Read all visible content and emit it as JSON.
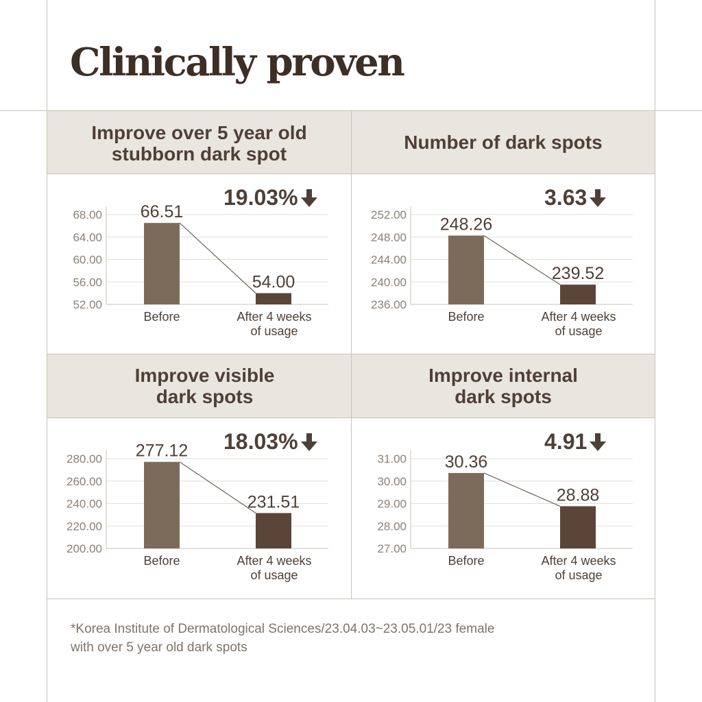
{
  "page": {
    "title": "Clinically proven",
    "footnote": "*Korea Institute of Dermatological Sciences/23.04.03~23.05.01/23 female\n  with over 5 year old dark spots"
  },
  "colors": {
    "background": "#ffffff",
    "header_bg": "#e9e6e0",
    "border": "#c9c3b8",
    "before_bar": "#7c6b5a",
    "after_bar": "#5a4538",
    "text_dark": "#4e4037",
    "tick_text": "#8a8178",
    "gridline": "#e2ded8"
  },
  "chart_data": [
    {
      "type": "bar",
      "title": "Improve over 5 year old\nstubborn dark spot",
      "change_label": "19.03%",
      "change_icon": "arrow-down-icon",
      "categories": [
        "Before",
        "After 4 weeks\nof usage"
      ],
      "values": [
        66.51,
        54.0
      ],
      "value_labels": [
        "66.51",
        "54.00"
      ],
      "yticks": [
        "52.00",
        "56.00",
        "60.00",
        "64.00",
        "68.00"
      ],
      "ylim": [
        52,
        68
      ],
      "grid": true
    },
    {
      "type": "bar",
      "title": "Number of dark spots",
      "change_label": "3.63",
      "change_icon": "arrow-down-icon",
      "categories": [
        "Before",
        "After 4 weeks\nof usage"
      ],
      "values": [
        248.26,
        239.52
      ],
      "value_labels": [
        "248.26",
        "239.52"
      ],
      "yticks": [
        "236.00",
        "240.00",
        "244.00",
        "248.00",
        "252.00"
      ],
      "ylim": [
        236,
        252
      ],
      "grid": true
    },
    {
      "type": "bar",
      "title": "Improve visible\ndark spots",
      "change_label": "18.03%",
      "change_icon": "arrow-down-icon",
      "categories": [
        "Before",
        "After 4 weeks\nof usage"
      ],
      "values": [
        277.12,
        231.51
      ],
      "value_labels": [
        "277.12",
        "231.51"
      ],
      "yticks": [
        "200.00",
        "220.00",
        "240.00",
        "260.00",
        "280.00"
      ],
      "ylim": [
        200,
        280
      ],
      "grid": true
    },
    {
      "type": "bar",
      "title": "Improve internal\ndark spots",
      "change_label": "4.91",
      "change_icon": "arrow-down-icon",
      "categories": [
        "Before",
        "After 4 weeks\nof usage"
      ],
      "values": [
        30.36,
        28.88
      ],
      "value_labels": [
        "30.36",
        "28.88"
      ],
      "yticks": [
        "27.00",
        "28.00",
        "29.00",
        "30.00",
        "31.00"
      ],
      "ylim": [
        27,
        31
      ],
      "grid": true
    }
  ]
}
